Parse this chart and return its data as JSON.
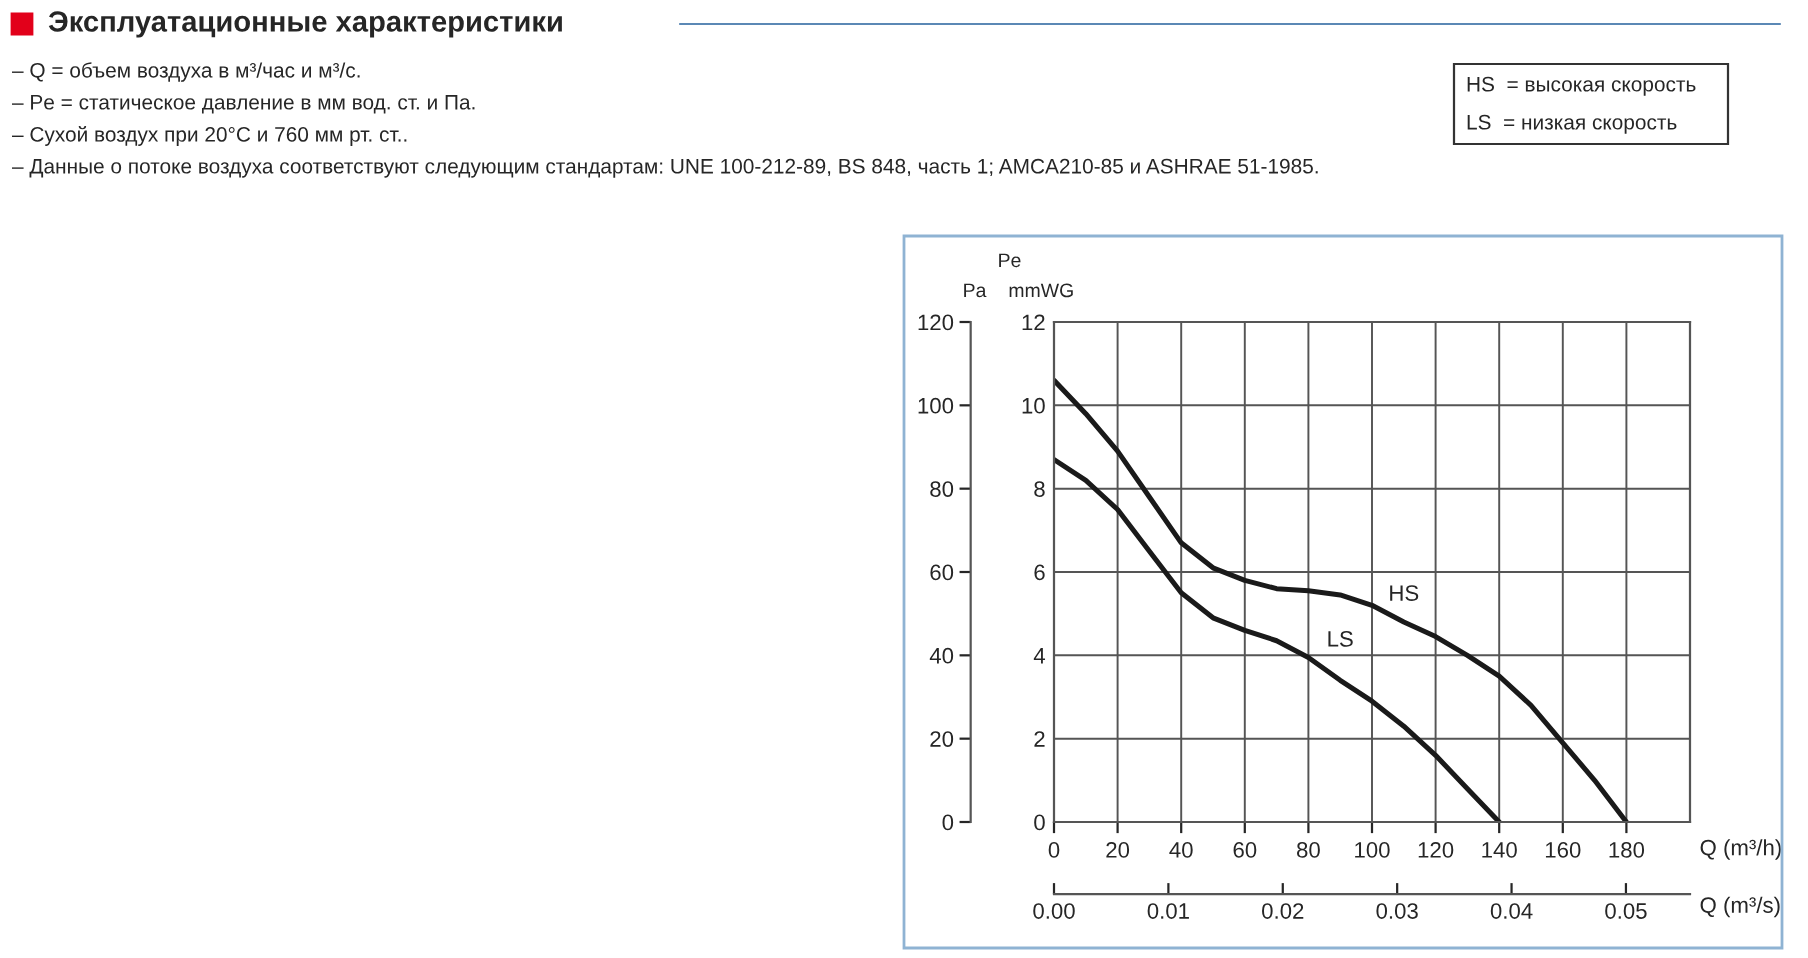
{
  "chart_data": {
    "type": "line",
    "title": "Эксплуатационные характеристики",
    "annotations": [
      "– Q = объем воздуха в м³/час и м³/с.",
      "– Pe = статическое давление в мм вод. ст. и Па.",
      "– Сухой воздух при 20°C и 760 мм рт. ст..",
      "– Данные о потоке воздуха соответствуют следующим стандартам: UNE 100-212-89, BS 848, часть 1; AMCA210-85 и ASHRAE 51-1985.",
      "HS  = высокая скорость",
      "LS  = низкая скорость",
      "Pe"
    ],
    "xlabel": "Q (m³/h)",
    "x2label": "Q (m³/s)",
    "ylabel": "Pa",
    "y2label": "mmWG",
    "series": [
      {
        "name": "HS",
        "color": "#1a1a1a",
        "x": [
          0,
          10,
          20,
          30,
          40,
          50,
          60,
          70,
          80,
          90,
          100,
          110,
          120,
          130,
          140,
          150,
          160,
          170,
          180
        ],
        "values": [
          106,
          98,
          89,
          78,
          67,
          61,
          58,
          56,
          55.5,
          54.5,
          52,
          48,
          44.5,
          40,
          35,
          28,
          19,
          10,
          0
        ]
      },
      {
        "name": "LS",
        "color": "#1a1a1a",
        "x": [
          0,
          10,
          20,
          30,
          40,
          50,
          60,
          70,
          80,
          90,
          100,
          110,
          120,
          130,
          140
        ],
        "values": [
          87,
          82,
          75,
          65,
          55,
          49,
          46,
          43.5,
          39.5,
          34,
          29,
          23,
          16,
          8,
          0
        ]
      }
    ],
    "xlim": [
      0,
      200
    ],
    "xticks": [
      0,
      20,
      40,
      60,
      80,
      100,
      120,
      140,
      160,
      180
    ],
    "ylim": [
      0,
      120
    ],
    "yticks": [
      0,
      20,
      40,
      60,
      80,
      100,
      120
    ],
    "y2lim": [
      0,
      12
    ],
    "y2ticks": [
      0,
      2,
      4,
      6,
      8,
      10,
      12
    ],
    "x2lim": [
      0,
      0.0556
    ],
    "x2ticks": [
      {
        "value": 0,
        "label": "0.00"
      },
      {
        "value": 0.01,
        "label": "0.01"
      },
      {
        "value": 0.02,
        "label": "0.02"
      },
      {
        "value": 0.03,
        "label": "0.03"
      },
      {
        "value": 0.04,
        "label": "0.04"
      },
      {
        "value": 0.05,
        "label": "0.05"
      }
    ],
    "grid": true,
    "line_style": "solid",
    "marker": "none"
  }
}
